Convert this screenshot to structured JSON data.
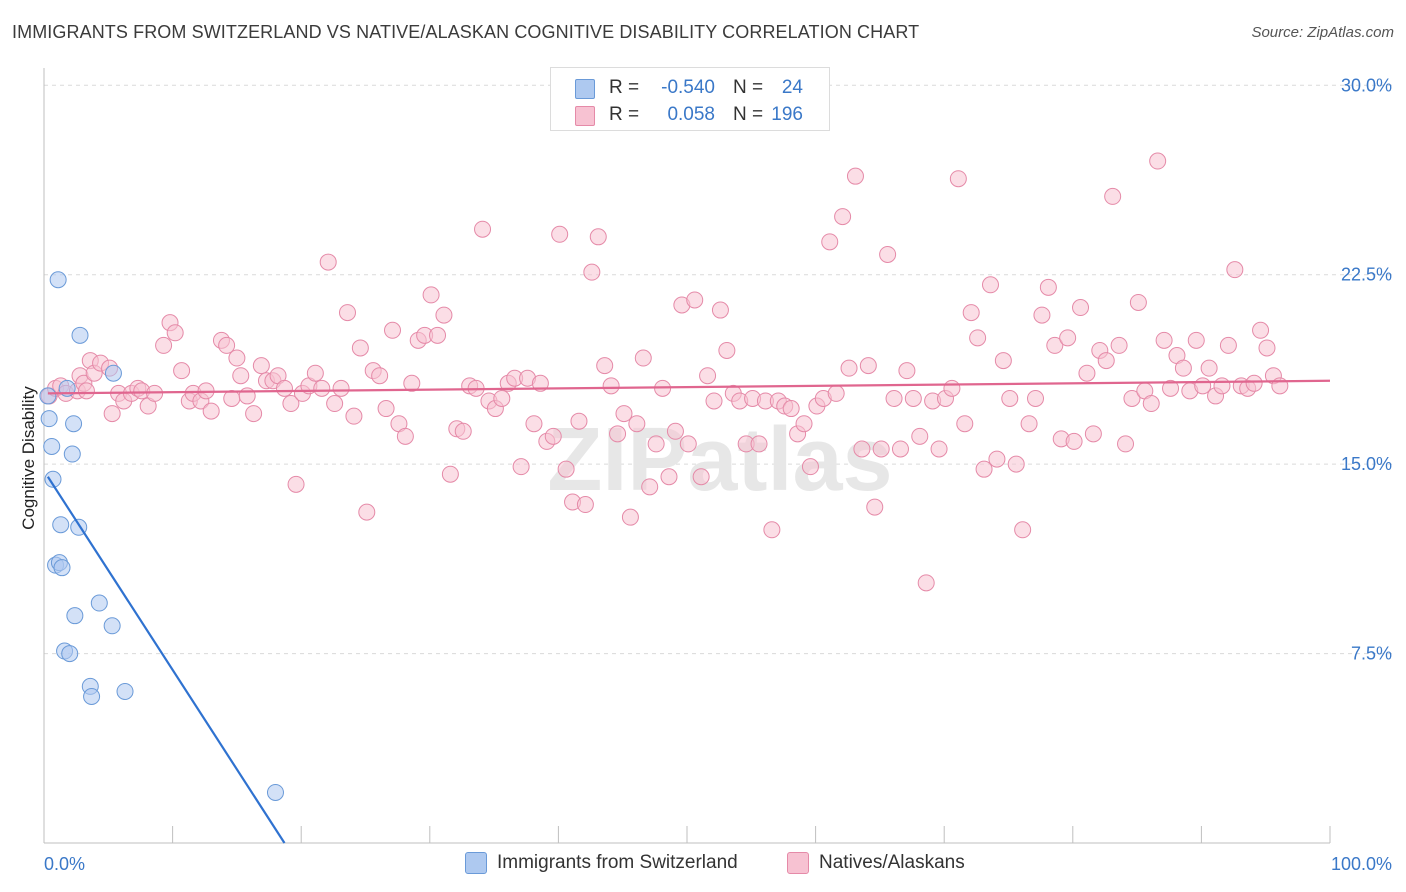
{
  "title": "IMMIGRANTS FROM SWITZERLAND VS NATIVE/ALASKAN COGNITIVE DISABILITY CORRELATION CHART",
  "source": "Source: ZipAtlas.com",
  "watermark": "ZIPatlas",
  "legend_top": [
    {
      "r_label": "R =",
      "r_value": "-0.540",
      "n_label": "N =",
      "n_value": "24",
      "color": "#aec9f0",
      "border": "#6a9ad8"
    },
    {
      "r_label": "R =",
      "r_value": "0.058",
      "n_label": "N =",
      "n_value": "196",
      "color": "#f7c2d2",
      "border": "#e58aa8"
    }
  ],
  "legend_bottom": [
    {
      "label": "Immigrants from Switzerland",
      "color": "#aec9f0",
      "border": "#6a9ad8"
    },
    {
      "label": "Natives/Alaskans",
      "color": "#f7c2d2",
      "border": "#e58aa8"
    }
  ],
  "chart_data": {
    "type": "scatter",
    "title": "IMMIGRANTS FROM SWITZERLAND VS NATIVE/ALASKAN COGNITIVE DISABILITY CORRELATION CHART",
    "xlabel": "",
    "ylabel": "Cognitive Disability",
    "xlim": [
      0,
      100
    ],
    "ylim": [
      0,
      31
    ],
    "x_tick_labels": [
      "0.0%",
      "100.0%"
    ],
    "y_ticks": [
      7.5,
      15.0,
      22.5,
      30.0
    ],
    "y_tick_labels": [
      "7.5%",
      "15.0%",
      "22.5%",
      "30.0%"
    ],
    "grid": true,
    "series": [
      {
        "name": "Immigrants from Switzerland",
        "color": "#aec9f0",
        "stroke": "#6a9ad8",
        "line_color": "#2f72d0",
        "trend": {
          "x": [
            0.3,
            18.7
          ],
          "y": [
            14.5,
            0.0
          ]
        },
        "points": [
          [
            0.3,
            17.7
          ],
          [
            0.4,
            16.8
          ],
          [
            0.6,
            15.7
          ],
          [
            0.7,
            14.4
          ],
          [
            0.9,
            11.0
          ],
          [
            1.1,
            22.3
          ],
          [
            1.2,
            11.1
          ],
          [
            1.3,
            12.6
          ],
          [
            1.4,
            10.9
          ],
          [
            1.6,
            7.6
          ],
          [
            1.8,
            18.0
          ],
          [
            2.0,
            7.5
          ],
          [
            2.2,
            15.4
          ],
          [
            2.3,
            16.6
          ],
          [
            2.4,
            9.0
          ],
          [
            2.7,
            12.5
          ],
          [
            2.8,
            20.1
          ],
          [
            3.6,
            6.2
          ],
          [
            3.7,
            5.8
          ],
          [
            4.3,
            9.5
          ],
          [
            5.3,
            8.6
          ],
          [
            5.4,
            18.6
          ],
          [
            6.3,
            6.0
          ],
          [
            18.0,
            2.0
          ]
        ]
      },
      {
        "name": "Natives/Alaskans",
        "color": "#f7c2d2",
        "stroke": "#e58aa8",
        "line_color": "#e0668f",
        "trend": {
          "x": [
            0.3,
            100.0
          ],
          "y": [
            17.8,
            18.3
          ]
        },
        "points": [
          [
            0.4,
            17.7
          ],
          [
            0.9,
            18.0
          ],
          [
            1.3,
            18.1
          ],
          [
            1.7,
            17.8
          ],
          [
            2.6,
            17.9
          ],
          [
            2.8,
            18.5
          ],
          [
            3.1,
            18.2
          ],
          [
            3.3,
            17.9
          ],
          [
            3.6,
            19.1
          ],
          [
            3.9,
            18.6
          ],
          [
            4.4,
            19.0
          ],
          [
            5.1,
            18.8
          ],
          [
            5.3,
            17.0
          ],
          [
            5.8,
            17.8
          ],
          [
            6.2,
            17.5
          ],
          [
            6.8,
            17.8
          ],
          [
            7.3,
            18.0
          ],
          [
            7.6,
            17.9
          ],
          [
            8.1,
            17.3
          ],
          [
            8.6,
            17.8
          ],
          [
            9.3,
            19.7
          ],
          [
            9.8,
            20.6
          ],
          [
            10.2,
            20.2
          ],
          [
            10.7,
            18.7
          ],
          [
            11.3,
            17.5
          ],
          [
            11.6,
            17.8
          ],
          [
            12.2,
            17.5
          ],
          [
            12.6,
            17.9
          ],
          [
            13.0,
            17.1
          ],
          [
            13.8,
            19.9
          ],
          [
            14.2,
            19.7
          ],
          [
            14.6,
            17.6
          ],
          [
            15.0,
            19.2
          ],
          [
            15.3,
            18.5
          ],
          [
            15.8,
            17.7
          ],
          [
            16.3,
            17.0
          ],
          [
            16.9,
            18.9
          ],
          [
            17.3,
            18.3
          ],
          [
            17.8,
            18.3
          ],
          [
            18.2,
            18.5
          ],
          [
            18.7,
            18.0
          ],
          [
            19.2,
            17.4
          ],
          [
            19.6,
            14.2
          ],
          [
            20.1,
            17.8
          ],
          [
            20.6,
            18.1
          ],
          [
            21.1,
            18.6
          ],
          [
            21.6,
            18.0
          ],
          [
            22.1,
            23.0
          ],
          [
            22.6,
            17.4
          ],
          [
            23.1,
            18.0
          ],
          [
            23.6,
            21.0
          ],
          [
            24.1,
            16.9
          ],
          [
            24.6,
            19.6
          ],
          [
            25.1,
            13.1
          ],
          [
            25.6,
            18.7
          ],
          [
            26.1,
            18.5
          ],
          [
            26.6,
            17.2
          ],
          [
            27.1,
            20.3
          ],
          [
            27.6,
            16.6
          ],
          [
            28.1,
            16.1
          ],
          [
            28.6,
            18.2
          ],
          [
            29.1,
            19.9
          ],
          [
            29.6,
            20.1
          ],
          [
            30.1,
            21.7
          ],
          [
            30.6,
            20.1
          ],
          [
            31.1,
            20.9
          ],
          [
            31.6,
            14.6
          ],
          [
            32.1,
            16.4
          ],
          [
            32.6,
            16.3
          ],
          [
            33.1,
            18.1
          ],
          [
            33.6,
            18.0
          ],
          [
            34.1,
            24.3
          ],
          [
            34.6,
            17.5
          ],
          [
            35.1,
            17.2
          ],
          [
            35.6,
            17.6
          ],
          [
            36.1,
            18.2
          ],
          [
            36.6,
            18.4
          ],
          [
            37.1,
            14.9
          ],
          [
            37.6,
            18.4
          ],
          [
            38.1,
            16.6
          ],
          [
            38.6,
            18.2
          ],
          [
            39.1,
            15.9
          ],
          [
            39.6,
            16.1
          ],
          [
            40.1,
            24.1
          ],
          [
            40.6,
            14.8
          ],
          [
            41.1,
            13.5
          ],
          [
            41.6,
            16.7
          ],
          [
            42.1,
            13.4
          ],
          [
            42.6,
            22.6
          ],
          [
            43.1,
            24.0
          ],
          [
            43.6,
            18.9
          ],
          [
            44.1,
            18.1
          ],
          [
            44.6,
            16.2
          ],
          [
            45.1,
            17.0
          ],
          [
            45.6,
            12.9
          ],
          [
            46.1,
            16.6
          ],
          [
            46.6,
            19.2
          ],
          [
            47.1,
            14.1
          ],
          [
            47.6,
            15.8
          ],
          [
            48.1,
            18.0
          ],
          [
            48.6,
            14.5
          ],
          [
            49.1,
            16.3
          ],
          [
            49.6,
            21.3
          ],
          [
            50.1,
            15.8
          ],
          [
            50.6,
            21.5
          ],
          [
            51.1,
            14.5
          ],
          [
            51.6,
            18.5
          ],
          [
            52.1,
            17.5
          ],
          [
            52.6,
            21.1
          ],
          [
            53.1,
            19.5
          ],
          [
            53.6,
            17.8
          ],
          [
            54.1,
            17.5
          ],
          [
            54.6,
            15.8
          ],
          [
            55.1,
            17.6
          ],
          [
            55.6,
            15.8
          ],
          [
            56.1,
            17.5
          ],
          [
            56.6,
            12.4
          ],
          [
            57.1,
            17.5
          ],
          [
            57.6,
            17.3
          ],
          [
            58.1,
            17.2
          ],
          [
            58.6,
            16.2
          ],
          [
            59.1,
            16.6
          ],
          [
            59.6,
            14.9
          ],
          [
            60.1,
            17.3
          ],
          [
            60.6,
            17.6
          ],
          [
            61.1,
            23.8
          ],
          [
            61.6,
            17.8
          ],
          [
            62.1,
            24.8
          ],
          [
            62.6,
            18.8
          ],
          [
            63.1,
            26.4
          ],
          [
            63.6,
            15.6
          ],
          [
            64.1,
            18.9
          ],
          [
            64.6,
            13.3
          ],
          [
            65.1,
            15.6
          ],
          [
            65.6,
            23.3
          ],
          [
            66.1,
            17.6
          ],
          [
            66.6,
            15.6
          ],
          [
            67.1,
            18.7
          ],
          [
            67.6,
            17.6
          ],
          [
            68.1,
            16.1
          ],
          [
            68.6,
            10.3
          ],
          [
            69.1,
            17.5
          ],
          [
            69.6,
            15.6
          ],
          [
            70.1,
            17.6
          ],
          [
            70.6,
            18.0
          ],
          [
            71.1,
            26.3
          ],
          [
            71.6,
            16.6
          ],
          [
            72.1,
            21.0
          ],
          [
            72.6,
            20.0
          ],
          [
            73.1,
            14.8
          ],
          [
            73.6,
            22.1
          ],
          [
            74.1,
            15.2
          ],
          [
            74.6,
            19.1
          ],
          [
            75.1,
            17.6
          ],
          [
            75.6,
            15.0
          ],
          [
            76.1,
            12.4
          ],
          [
            76.6,
            16.6
          ],
          [
            77.1,
            17.6
          ],
          [
            77.6,
            20.9
          ],
          [
            78.1,
            22.0
          ],
          [
            78.6,
            19.7
          ],
          [
            79.1,
            16.0
          ],
          [
            79.6,
            20.0
          ],
          [
            80.1,
            15.9
          ],
          [
            80.6,
            21.2
          ],
          [
            81.1,
            18.6
          ],
          [
            81.6,
            16.2
          ],
          [
            82.1,
            19.5
          ],
          [
            82.6,
            19.1
          ],
          [
            83.1,
            25.6
          ],
          [
            83.6,
            19.7
          ],
          [
            84.1,
            15.8
          ],
          [
            84.6,
            17.6
          ],
          [
            85.1,
            21.4
          ],
          [
            85.6,
            17.9
          ],
          [
            86.1,
            17.4
          ],
          [
            86.6,
            27.0
          ],
          [
            87.1,
            19.9
          ],
          [
            87.6,
            18.0
          ],
          [
            88.1,
            19.3
          ],
          [
            88.6,
            18.8
          ],
          [
            89.1,
            17.9
          ],
          [
            89.6,
            19.9
          ],
          [
            90.1,
            18.1
          ],
          [
            90.6,
            18.8
          ],
          [
            91.1,
            17.7
          ],
          [
            91.6,
            18.1
          ],
          [
            92.1,
            19.7
          ],
          [
            92.6,
            22.7
          ],
          [
            93.1,
            18.1
          ],
          [
            93.6,
            18.0
          ],
          [
            94.1,
            18.2
          ],
          [
            94.6,
            20.3
          ],
          [
            95.1,
            19.6
          ],
          [
            95.6,
            18.5
          ],
          [
            96.1,
            18.1
          ]
        ]
      }
    ]
  }
}
